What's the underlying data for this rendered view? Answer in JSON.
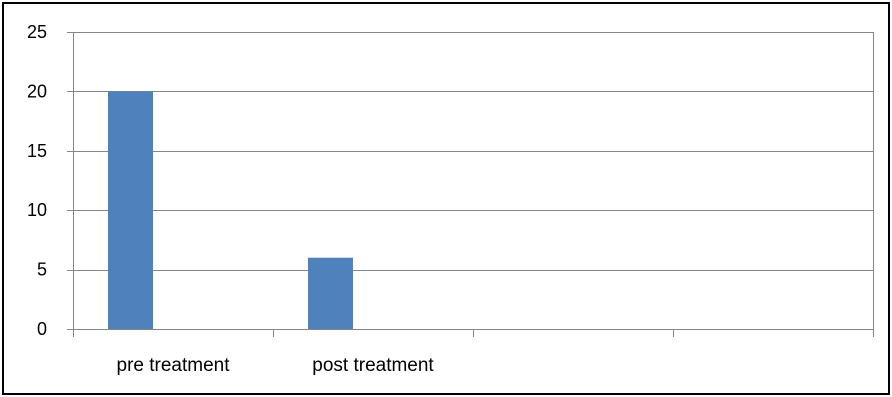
{
  "chart_data": {
    "type": "bar",
    "categories": [
      "pre treatment",
      "post treatment",
      "",
      ""
    ],
    "series": [
      {
        "values": [
          20,
          6,
          0,
          0
        ]
      }
    ],
    "title": "",
    "xlabel": "",
    "ylabel": "",
    "ylim": [
      0,
      25
    ],
    "yticks": [
      0,
      5,
      10,
      15,
      20,
      25
    ],
    "grid": true,
    "legend": "none",
    "bar_color": "#4F81BD",
    "grid_color": "#868686"
  }
}
